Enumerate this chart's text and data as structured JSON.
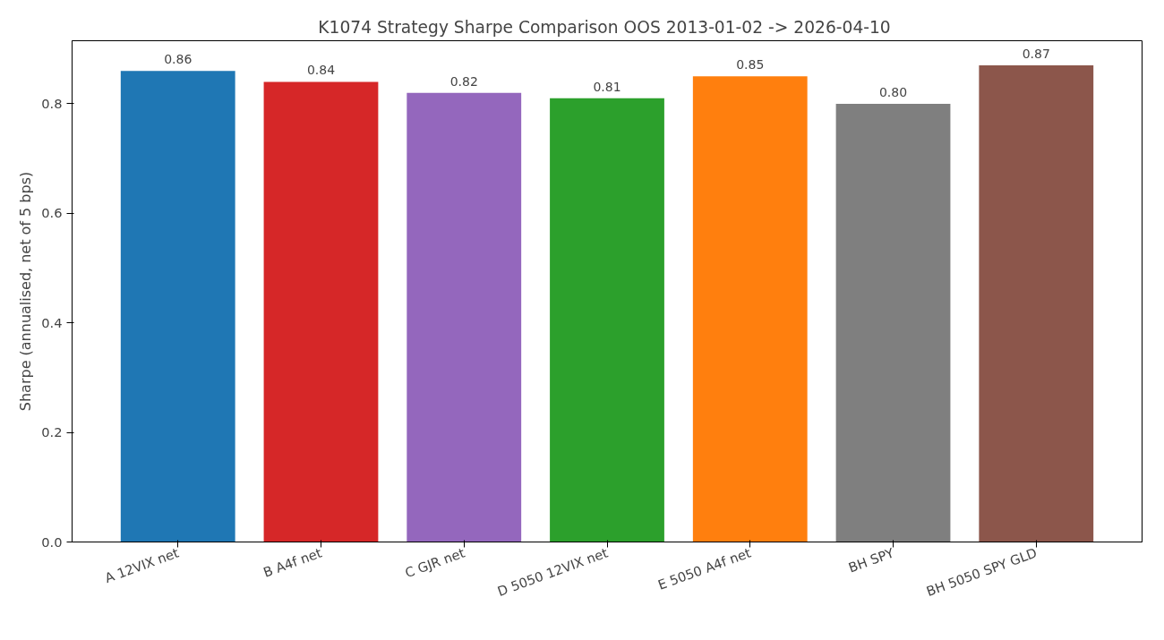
{
  "chart_data": {
    "type": "bar",
    "title": "K1074 Strategy Sharpe Comparison  OOS 2013-01-02 -> 2026-04-10",
    "ylabel": "Sharpe (annualised, net of 5 bps)",
    "categories": [
      "A 12VIX net",
      "B A4f net",
      "C GJR net",
      "D 5050 12VIX net",
      "E 5050 A4f net",
      "BH SPY",
      "BH 5050 SPY GLD"
    ],
    "values": [
      0.86,
      0.84,
      0.82,
      0.81,
      0.85,
      0.8,
      0.87
    ],
    "value_labels": [
      "0.86",
      "0.84",
      "0.82",
      "0.81",
      "0.85",
      "0.80",
      "0.87"
    ],
    "colors": [
      "#1f77b4",
      "#d62728",
      "#9467bd",
      "#2ca02c",
      "#ff7f0e",
      "#7f7f7f",
      "#8c564b"
    ],
    "ylim": [
      0,
      0.915
    ],
    "yticks": [
      {
        "value": 0,
        "label": "0.0"
      },
      {
        "value": 0.2,
        "label": "0.2"
      },
      {
        "value": 0.4,
        "label": "0.4"
      },
      {
        "value": 0.6,
        "label": "0.6"
      },
      {
        "value": 0.8,
        "label": "0.8"
      }
    ],
    "grid": false
  }
}
